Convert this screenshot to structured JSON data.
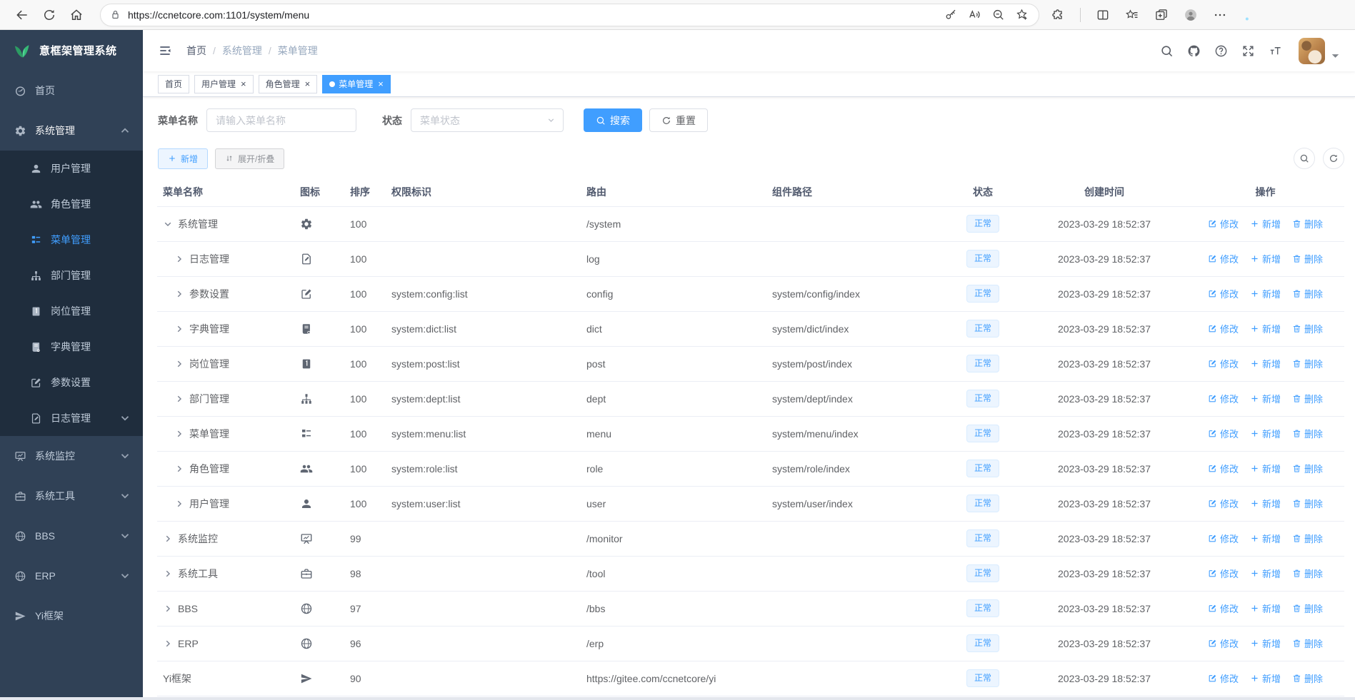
{
  "browser": {
    "url": "https://ccnetcore.com:1101/system/menu",
    "nav_icons": [
      "back",
      "reload",
      "home"
    ],
    "address_icon": "lock",
    "pill_icons": [
      "key",
      "read-aloud",
      "zoom-out",
      "star-add"
    ],
    "right_icons": [
      "extensions",
      "split-screen",
      "favorites-bar",
      "collections",
      "profile",
      "more",
      "bing-chat"
    ]
  },
  "sidebar": {
    "logo_text": "意框架管理系统",
    "items": [
      {
        "key": "home",
        "label": "首页",
        "icon": "dashboard",
        "sub": false
      },
      {
        "key": "system",
        "label": "系统管理",
        "icon": "gear",
        "sub": false,
        "open": true,
        "arrow": "up"
      },
      {
        "key": "user",
        "label": "用户管理",
        "icon": "user",
        "sub": true
      },
      {
        "key": "role",
        "label": "角色管理",
        "icon": "users",
        "sub": true
      },
      {
        "key": "menu",
        "label": "菜单管理",
        "icon": "menu",
        "sub": true,
        "active": true
      },
      {
        "key": "dept",
        "label": "部门管理",
        "icon": "tree",
        "sub": true
      },
      {
        "key": "post",
        "label": "岗位管理",
        "icon": "post",
        "sub": true
      },
      {
        "key": "dict",
        "label": "字典管理",
        "icon": "dict",
        "sub": true
      },
      {
        "key": "config",
        "label": "参数设置",
        "icon": "config",
        "sub": true
      },
      {
        "key": "log",
        "label": "日志管理",
        "icon": "log",
        "sub": true,
        "arrow": "down"
      },
      {
        "key": "monitor",
        "label": "系统监控",
        "icon": "monitor",
        "sub": false,
        "arrow": "down"
      },
      {
        "key": "tool",
        "label": "系统工具",
        "icon": "tool",
        "sub": false,
        "arrow": "down"
      },
      {
        "key": "bbs",
        "label": "BBS",
        "icon": "globe",
        "sub": false,
        "arrow": "down"
      },
      {
        "key": "erp",
        "label": "ERP",
        "icon": "globe",
        "sub": false,
        "arrow": "down"
      },
      {
        "key": "yi",
        "label": "Yi框架",
        "icon": "plane",
        "sub": false
      }
    ]
  },
  "navbar": {
    "breadcrumb": [
      "首页",
      "系统管理",
      "菜单管理"
    ],
    "right_icons": [
      "search",
      "github",
      "question",
      "fullscreen",
      "font-size"
    ]
  },
  "tabs": [
    {
      "label": "首页",
      "closable": false,
      "active": false
    },
    {
      "label": "用户管理",
      "closable": true,
      "active": false
    },
    {
      "label": "角色管理",
      "closable": true,
      "active": false
    },
    {
      "label": "菜单管理",
      "closable": true,
      "active": true
    }
  ],
  "filters": {
    "name_label": "菜单名称",
    "name_placeholder": "请输入菜单名称",
    "name_value": "",
    "status_label": "状态",
    "status_placeholder": "菜单状态",
    "search_label": "搜索",
    "reset_label": "重置"
  },
  "toolbar": {
    "add_label": "新增",
    "expand_label": "展开/折叠"
  },
  "table": {
    "columns": [
      "菜单名称",
      "图标",
      "排序",
      "权限标识",
      "路由",
      "组件路径",
      "状态",
      "创建时间",
      "操作"
    ],
    "actions": [
      "修改",
      "新增",
      "删除"
    ],
    "rows": [
      {
        "name": "系统管理",
        "level": 0,
        "expand": "open",
        "icon": "gear",
        "sort": "100",
        "perms": "",
        "route": "/system",
        "component": "",
        "status": "正常",
        "time": "2023-03-29 18:52:37"
      },
      {
        "name": "日志管理",
        "level": 1,
        "expand": "closed",
        "icon": "log",
        "sort": "100",
        "perms": "",
        "route": "log",
        "component": "",
        "status": "正常",
        "time": "2023-03-29 18:52:37"
      },
      {
        "name": "参数设置",
        "level": 1,
        "expand": "closed",
        "icon": "config",
        "sort": "100",
        "perms": "system:config:list",
        "route": "config",
        "component": "system/config/index",
        "status": "正常",
        "time": "2023-03-29 18:52:37"
      },
      {
        "name": "字典管理",
        "level": 1,
        "expand": "closed",
        "icon": "dict",
        "sort": "100",
        "perms": "system:dict:list",
        "route": "dict",
        "component": "system/dict/index",
        "status": "正常",
        "time": "2023-03-29 18:52:37"
      },
      {
        "name": "岗位管理",
        "level": 1,
        "expand": "closed",
        "icon": "post",
        "sort": "100",
        "perms": "system:post:list",
        "route": "post",
        "component": "system/post/index",
        "status": "正常",
        "time": "2023-03-29 18:52:37"
      },
      {
        "name": "部门管理",
        "level": 1,
        "expand": "closed",
        "icon": "tree",
        "sort": "100",
        "perms": "system:dept:list",
        "route": "dept",
        "component": "system/dept/index",
        "status": "正常",
        "time": "2023-03-29 18:52:37"
      },
      {
        "name": "菜单管理",
        "level": 1,
        "expand": "closed",
        "icon": "menu",
        "sort": "100",
        "perms": "system:menu:list",
        "route": "menu",
        "component": "system/menu/index",
        "status": "正常",
        "time": "2023-03-29 18:52:37"
      },
      {
        "name": "角色管理",
        "level": 1,
        "expand": "closed",
        "icon": "users",
        "sort": "100",
        "perms": "system:role:list",
        "route": "role",
        "component": "system/role/index",
        "status": "正常",
        "time": "2023-03-29 18:52:37"
      },
      {
        "name": "用户管理",
        "level": 1,
        "expand": "closed",
        "icon": "user",
        "sort": "100",
        "perms": "system:user:list",
        "route": "user",
        "component": "system/user/index",
        "status": "正常",
        "time": "2023-03-29 18:52:37"
      },
      {
        "name": "系统监控",
        "level": 0,
        "expand": "closed",
        "icon": "monitor",
        "sort": "99",
        "perms": "",
        "route": "/monitor",
        "component": "",
        "status": "正常",
        "time": "2023-03-29 18:52:37"
      },
      {
        "name": "系统工具",
        "level": 0,
        "expand": "closed",
        "icon": "tool",
        "sort": "98",
        "perms": "",
        "route": "/tool",
        "component": "",
        "status": "正常",
        "time": "2023-03-29 18:52:37"
      },
      {
        "name": "BBS",
        "level": 0,
        "expand": "closed",
        "icon": "globe",
        "sort": "97",
        "perms": "",
        "route": "/bbs",
        "component": "",
        "status": "正常",
        "time": "2023-03-29 18:52:37"
      },
      {
        "name": "ERP",
        "level": 0,
        "expand": "closed",
        "icon": "globe",
        "sort": "96",
        "perms": "",
        "route": "/erp",
        "component": "",
        "status": "正常",
        "time": "2023-03-29 18:52:37"
      },
      {
        "name": "Yi框架",
        "level": 0,
        "expand": "none",
        "icon": "plane",
        "sort": "90",
        "perms": "",
        "route": "https://gitee.com/ccnetcore/yi",
        "component": "",
        "status": "正常",
        "time": "2023-03-29 18:52:37"
      }
    ]
  },
  "colors": {
    "primary": "#409eff",
    "sidebar_bg": "#304156",
    "submenu_bg": "#1f2d3d",
    "status_tag_bg": "#ecf5ff"
  }
}
